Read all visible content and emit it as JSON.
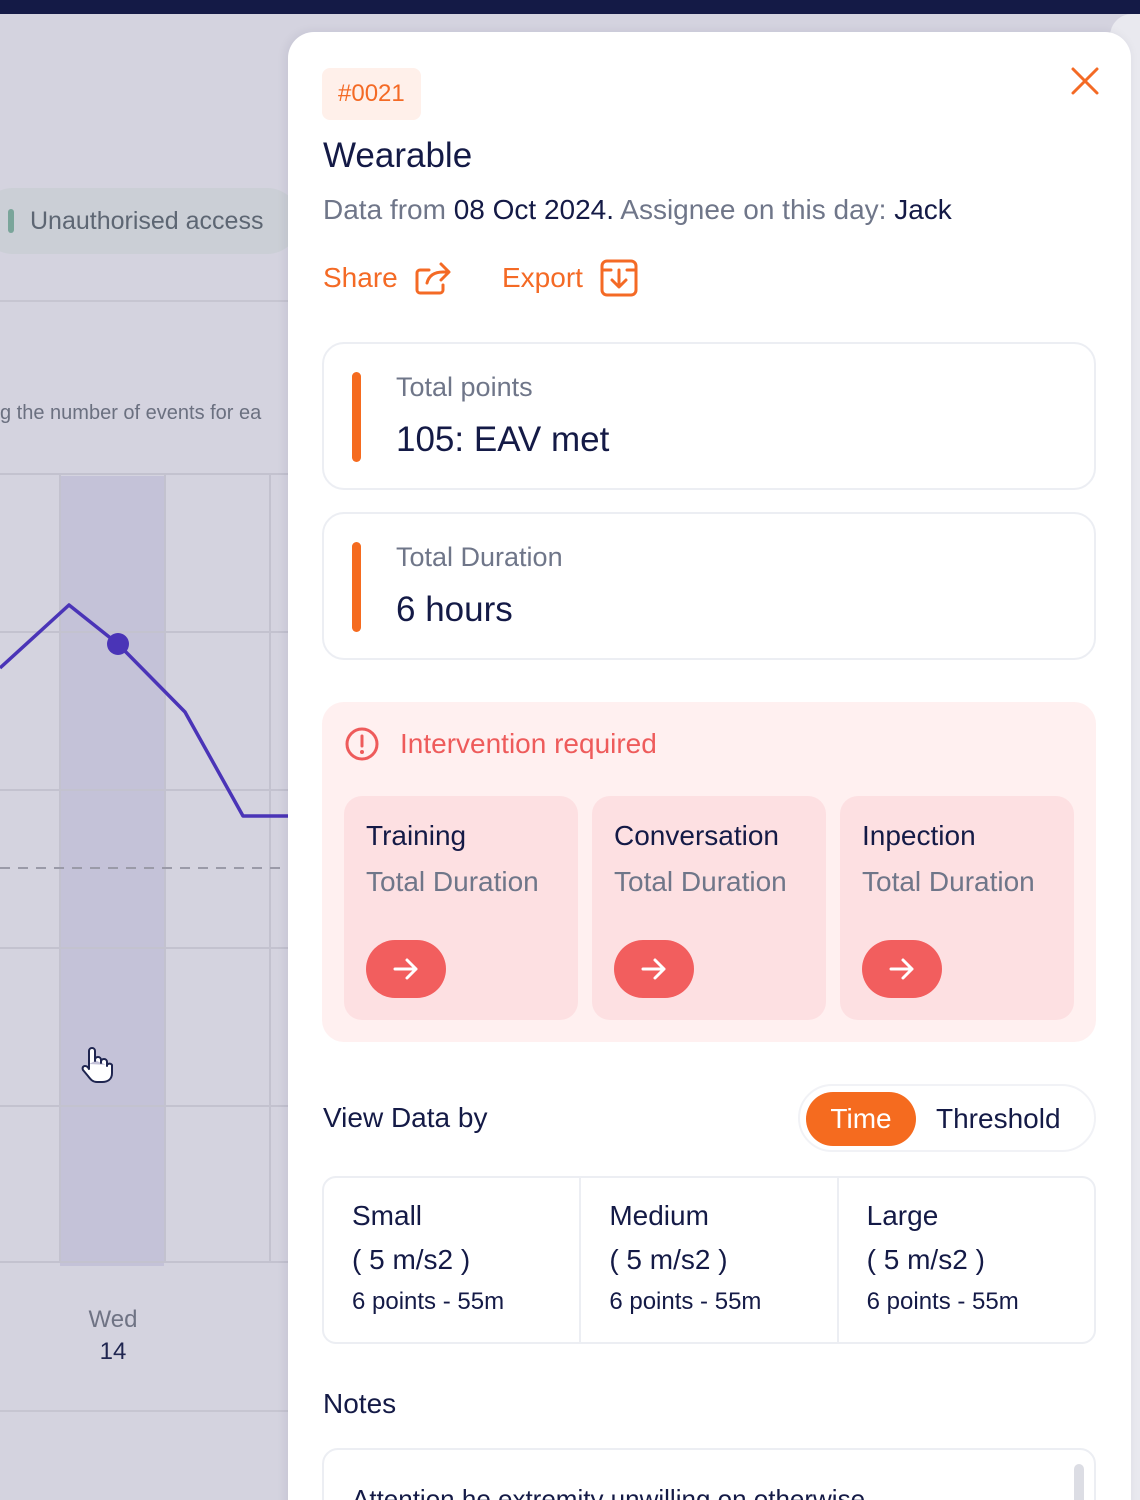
{
  "background": {
    "chip_label": "Unauthorised access",
    "chart_description": "g the number of events for ea",
    "axis_day": "Wed",
    "axis_date": "14"
  },
  "panel": {
    "badge": "#0021",
    "title": "Wearable",
    "subtitle": {
      "prefix": "Data from ",
      "date": "08 Oct 2024.",
      "middle": " Assignee on this day: ",
      "assignee": "Jack"
    },
    "actions": {
      "share": "Share",
      "export": "Export"
    },
    "stats": [
      {
        "label": "Total points",
        "value": "105: EAV met"
      },
      {
        "label": "Total Duration",
        "value": "6 hours"
      }
    ],
    "intervention": {
      "title": "Intervention required",
      "cards": [
        {
          "name": "Training",
          "sub": "Total Duration"
        },
        {
          "name": "Conversation",
          "sub": "Total Duration"
        },
        {
          "name": "Inpection",
          "sub": "Total Duration"
        }
      ]
    },
    "view_by": {
      "label": "View Data by",
      "options": [
        "Time",
        "Threshold"
      ],
      "selected": "Time"
    },
    "sizes": [
      {
        "name": "Small",
        "value": "( 5 m/s2 )",
        "points": "6 points - 55m"
      },
      {
        "name": "Medium",
        "value": "( 5 m/s2 )",
        "points": "6 points - 55m"
      },
      {
        "name": "Large",
        "value": "( 5 m/s2 )",
        "points": "6 points - 55m"
      }
    ],
    "notes": {
      "label": "Notes",
      "text": "Attention he extremity unwilling on otherwise"
    }
  },
  "colors": {
    "accent": "#f56b1f",
    "alert": "#f25e5e",
    "navy": "#141a46",
    "chart_line": "#4a34b7"
  }
}
